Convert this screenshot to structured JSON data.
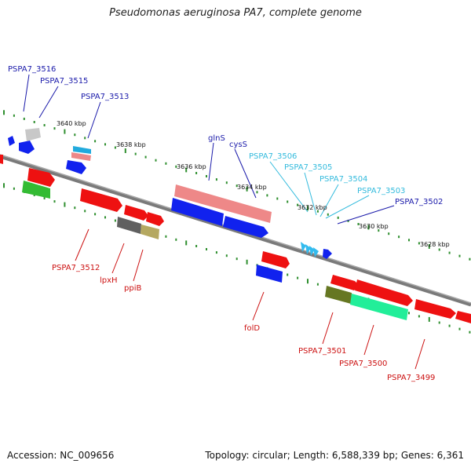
{
  "title": "Pseudomonas aeruginosa PA7, complete genome",
  "footer": {
    "accession": "Accession: NC_009656",
    "summary": "Topology: circular; Length: 6,588,339 bp; Genes: 6,361"
  },
  "colors": {
    "backbone": "#808080",
    "tick": "#2f8f2f",
    "label_dark": "#1a1aaa",
    "label_light": "#33bbdd",
    "label_red": "#cc1111"
  },
  "scale_labels": [
    "3640 kbp",
    "3638 kbp",
    "3636 kbp",
    "3634 kbp",
    "3632 kbp",
    "3630 kbp",
    "3628 kbp"
  ],
  "gene_labels_top": [
    {
      "text": "PSPA7_3516",
      "color": "dark"
    },
    {
      "text": "PSPA7_3515",
      "color": "dark"
    },
    {
      "text": "PSPA7_3513",
      "color": "dark"
    },
    {
      "text": "glnS",
      "color": "dark"
    },
    {
      "text": "cysS",
      "color": "dark"
    },
    {
      "text": "PSPA7_3506",
      "color": "light"
    },
    {
      "text": "PSPA7_3505",
      "color": "light"
    },
    {
      "text": "PSPA7_3504",
      "color": "light"
    },
    {
      "text": "PSPA7_3503",
      "color": "light"
    },
    {
      "text": "PSPA7_3502",
      "color": "dark"
    }
  ],
  "gene_labels_bottom": [
    {
      "text": "PSPA7_3512"
    },
    {
      "text": "lpxH"
    },
    {
      "text": "ppiB"
    },
    {
      "text": "folD"
    },
    {
      "text": "PSPA7_3501"
    },
    {
      "text": "PSPA7_3500"
    },
    {
      "text": "PSPA7_3499"
    }
  ]
}
